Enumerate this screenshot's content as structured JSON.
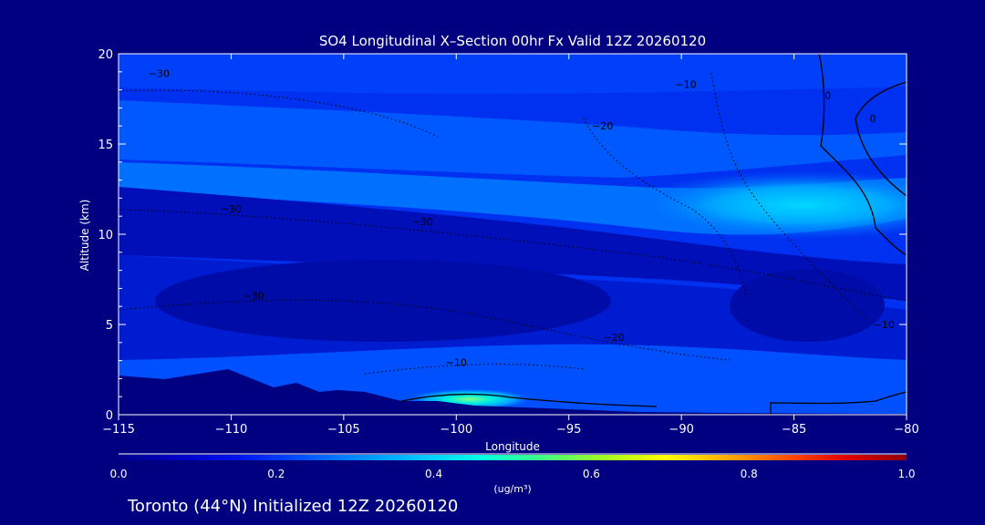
{
  "chart_data": {
    "type": "heatmap",
    "title": "SO4 Longitudinal X–Section 00hr  Fx Valid 12Z 20260120",
    "xlabel": "Longitude",
    "ylabel": "Altitude (km)",
    "xlim": [
      -115,
      -80
    ],
    "ylim": [
      0,
      20
    ],
    "x_ticks": [
      -115,
      -110,
      -105,
      -100,
      -95,
      -90,
      -85,
      -80
    ],
    "x_tick_labels": [
      "−115",
      "−110",
      "−105",
      "−100",
      "−95",
      "−90",
      "−85",
      "−80"
    ],
    "y_ticks": [
      0,
      5,
      10,
      15,
      20
    ],
    "y_tick_labels": [
      "0",
      "5",
      "10",
      "15",
      "20"
    ],
    "colorbar": {
      "min": 0.0,
      "max": 1.0,
      "ticks": [
        "0.0",
        "0.2",
        "0.4",
        "0.6",
        "0.8",
        "1.0"
      ],
      "unit_label": "(ug/m³)",
      "colors": [
        "#00008c",
        "#0000c8",
        "#0014f0",
        "#0050ff",
        "#0090ff",
        "#00c8ff",
        "#00ffe0",
        "#40ff80",
        "#a0ff20",
        "#ffff00",
        "#ffb000",
        "#ff5000",
        "#e00000",
        "#900000"
      ]
    },
    "contour_labels": [
      {
        "text": "−30",
        "lon": -113.2,
        "alt": 18.7
      },
      {
        "text": "−20",
        "lon": -93.5,
        "alt": 15.8
      },
      {
        "text": "−10",
        "lon": -89.8,
        "alt": 18.1
      },
      {
        "text": "−30",
        "lon": -110.0,
        "alt": 11.2
      },
      {
        "text": "−30",
        "lon": -101.5,
        "alt": 10.5
      },
      {
        "text": "−30",
        "lon": -109.0,
        "alt": 6.4
      },
      {
        "text": "−20",
        "lon": -93.0,
        "alt": 4.1
      },
      {
        "text": "−10",
        "lon": -100.0,
        "alt": 2.7
      },
      {
        "text": "−10",
        "lon": -81.0,
        "alt": 4.8
      },
      {
        "text": "0",
        "lon": -81.5,
        "alt": 16.2
      },
      {
        "text": "0",
        "lon": -83.5,
        "alt": 17.5
      }
    ],
    "caption": "Toronto (44°N) Initialized 12Z 20260120"
  }
}
